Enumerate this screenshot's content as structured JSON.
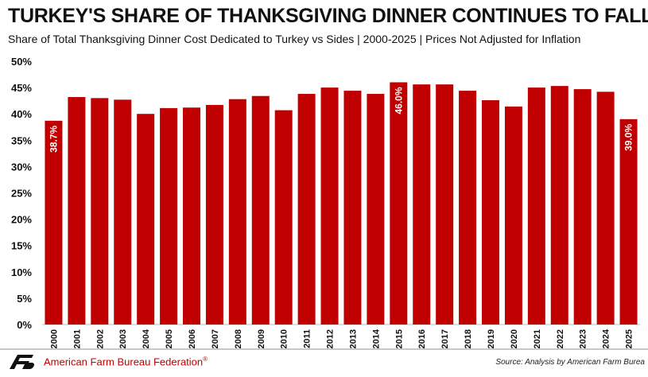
{
  "header": {
    "title": "TURKEY'S SHARE OF THANKSGIVING DINNER CONTINUES TO FALL",
    "subtitle": "Share of Total Thanksgiving Dinner Cost Dedicated to Turkey vs Sides | 2000-2025 | Prices Not Adjusted for Inflation"
  },
  "footer": {
    "organization": "American Farm Bureau Federation",
    "organization_mark": "®",
    "source": "Source: Analysis by American Farm Burea",
    "logo_icon": "afb-logo-icon"
  },
  "colors": {
    "bar": "#c00000",
    "label": "#ffffff",
    "grid": "#d9d9d9"
  },
  "chart_data": {
    "type": "bar",
    "categories": [
      "2000",
      "2001",
      "2002",
      "2003",
      "2004",
      "2005",
      "2006",
      "2007",
      "2008",
      "2009",
      "2010",
      "2011",
      "2012",
      "2013",
      "2014",
      "2015",
      "2016",
      "2017",
      "2018",
      "2019",
      "2020",
      "2021",
      "2022",
      "2023",
      "2024",
      "2025"
    ],
    "values": [
      38.7,
      43.2,
      43.0,
      42.7,
      40.0,
      41.1,
      41.2,
      41.7,
      42.8,
      43.4,
      40.7,
      43.8,
      45.0,
      44.4,
      43.8,
      46.0,
      45.6,
      45.6,
      44.4,
      42.6,
      41.4,
      45.0,
      45.3,
      44.7,
      44.2,
      39.0
    ],
    "data_labels": [
      {
        "index": 0,
        "text": "38.7%"
      },
      {
        "index": 15,
        "text": "46.0%"
      },
      {
        "index": 25,
        "text": "39.0%"
      }
    ],
    "yticks": [
      "0%",
      "5%",
      "10%",
      "15%",
      "20%",
      "25%",
      "30%",
      "35%",
      "40%",
      "45%",
      "50%"
    ],
    "ylim": [
      0,
      50
    ],
    "grid": false
  }
}
